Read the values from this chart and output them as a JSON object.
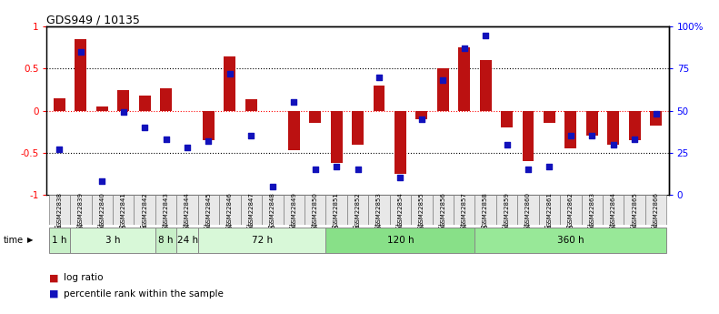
{
  "title": "GDS949 / 10135",
  "samples": [
    "GSM22838",
    "GSM22839",
    "GSM22840",
    "GSM22841",
    "GSM22842",
    "GSM22843",
    "GSM22844",
    "GSM22845",
    "GSM22846",
    "GSM22847",
    "GSM22848",
    "GSM22849",
    "GSM22850",
    "GSM22851",
    "GSM22852",
    "GSM22853",
    "GSM22854",
    "GSM22855",
    "GSM22856",
    "GSM22857",
    "GSM22858",
    "GSM22859",
    "GSM22860",
    "GSM22861",
    "GSM22862",
    "GSM22863",
    "GSM22864",
    "GSM22865",
    "GSM22866"
  ],
  "log_ratio": [
    0.15,
    0.85,
    0.05,
    0.25,
    0.18,
    0.27,
    0.0,
    -0.35,
    0.65,
    0.14,
    0.0,
    -0.47,
    -0.15,
    -0.62,
    -0.4,
    0.3,
    -0.75,
    -0.1,
    0.5,
    0.75,
    0.6,
    -0.2,
    -0.6,
    -0.15,
    -0.45,
    -0.3,
    -0.4,
    -0.35,
    -0.18
  ],
  "percentile": [
    27,
    85,
    8,
    49,
    40,
    33,
    28,
    32,
    72,
    35,
    5,
    55,
    15,
    17,
    15,
    70,
    10,
    45,
    68,
    87,
    95,
    30,
    15,
    17,
    35,
    35,
    30,
    33,
    48
  ],
  "time_groups": [
    {
      "label": "1 h",
      "start": 0,
      "end": 1,
      "color": "#c8f0c8"
    },
    {
      "label": "3 h",
      "start": 1,
      "end": 5,
      "color": "#d8f8d8"
    },
    {
      "label": "8 h",
      "start": 5,
      "end": 6,
      "color": "#c8f0c8"
    },
    {
      "label": "24 h",
      "start": 6,
      "end": 7,
      "color": "#d8f8d8"
    },
    {
      "label": "72 h",
      "start": 7,
      "end": 13,
      "color": "#d8f8d8"
    },
    {
      "label": "120 h",
      "start": 13,
      "end": 20,
      "color": "#88e088"
    },
    {
      "label": "360 h",
      "start": 20,
      "end": 29,
      "color": "#98e898"
    }
  ],
  "bar_color": "#bb1111",
  "dot_color": "#1111bb",
  "bar_width": 0.55,
  "ylim": [
    -1,
    1
  ],
  "yticks_left": [
    -1,
    -0.5,
    0,
    0.5,
    1
  ],
  "yticks_left_labels": [
    "-1",
    "-0.5",
    "0",
    "0.5",
    "1"
  ],
  "yticks_right_vals": [
    0,
    25,
    50,
    75,
    100
  ],
  "yticks_right_labels": [
    "0",
    "25",
    "50",
    "75",
    "100%"
  ],
  "background_color": "#ffffff",
  "legend_log_ratio": "log ratio",
  "legend_percentile": "percentile rank within the sample"
}
